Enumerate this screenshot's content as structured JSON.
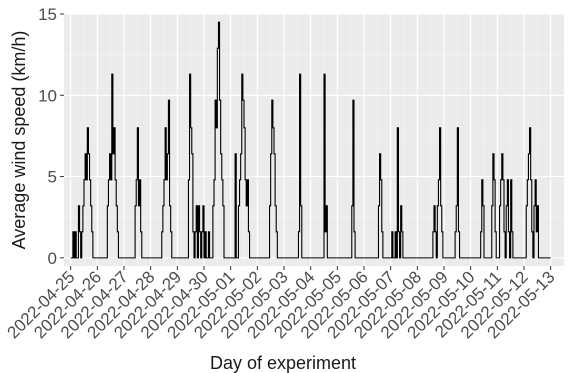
{
  "chart_data": {
    "type": "line",
    "title": "",
    "xlabel": "Day of experiment",
    "ylabel": "Average wind speed (km/h)",
    "ylim": [
      -0.5,
      15
    ],
    "yticks": [
      0,
      5,
      10,
      15
    ],
    "grid": true,
    "legend": "none",
    "x_type": "date",
    "xlim": [
      "2022-04-24T18:00",
      "2022-05-13T12:00"
    ],
    "xticks": [
      "2022-04-25",
      "2022-04-26",
      "2022-04-27",
      "2022-04-28",
      "2022-04-29",
      "2022-04-30",
      "2022-05-01",
      "2022-05-02",
      "2022-05-03",
      "2022-05-04",
      "2022-05-05",
      "2022-05-06",
      "2022-05-07",
      "2022-05-08",
      "2022-05-09",
      "2022-05-10",
      "2022-05-11",
      "2022-05-12",
      "2022-05-13"
    ],
    "series": [
      {
        "color": "#000000",
        "points": [
          [
            "2022-04-25T00:00",
            0
          ],
          [
            "2022-04-25T02:00",
            1.6
          ],
          [
            "2022-04-25T03:00",
            0
          ],
          [
            "2022-04-25T04:00",
            1.6
          ],
          [
            "2022-04-25T05:00",
            0
          ],
          [
            "2022-04-25T07:00",
            3.2
          ],
          [
            "2022-04-25T08:00",
            1.6
          ],
          [
            "2022-04-25T09:00",
            0
          ],
          [
            "2022-04-25T10:00",
            1.6
          ],
          [
            "2022-04-25T11:00",
            3.2
          ],
          [
            "2022-04-25T12:00",
            4.8
          ],
          [
            "2022-04-25T13:00",
            6.4
          ],
          [
            "2022-04-25T14:00",
            4.8
          ],
          [
            "2022-04-25T15:00",
            8.0
          ],
          [
            "2022-04-25T16:00",
            6.4
          ],
          [
            "2022-04-25T17:00",
            4.8
          ],
          [
            "2022-04-25T18:00",
            3.2
          ],
          [
            "2022-04-25T19:00",
            1.6
          ],
          [
            "2022-04-25T20:00",
            0
          ],
          [
            "2022-04-26T08:00",
            0
          ],
          [
            "2022-04-26T09:00",
            3.2
          ],
          [
            "2022-04-26T10:00",
            4.8
          ],
          [
            "2022-04-26T11:00",
            6.4
          ],
          [
            "2022-04-26T12:00",
            4.8
          ],
          [
            "2022-04-26T13:00",
            11.3
          ],
          [
            "2022-04-26T14:00",
            6.4
          ],
          [
            "2022-04-26T15:00",
            8.0
          ],
          [
            "2022-04-26T16:00",
            4.8
          ],
          [
            "2022-04-26T17:00",
            3.2
          ],
          [
            "2022-04-26T18:00",
            1.6
          ],
          [
            "2022-04-26T19:00",
            0
          ],
          [
            "2022-04-27T09:00",
            0
          ],
          [
            "2022-04-27T10:00",
            3.2
          ],
          [
            "2022-04-27T11:00",
            4.8
          ],
          [
            "2022-04-27T12:00",
            8.0
          ],
          [
            "2022-04-27T13:00",
            3.2
          ],
          [
            "2022-04-27T14:00",
            4.8
          ],
          [
            "2022-04-27T15:00",
            1.6
          ],
          [
            "2022-04-27T16:00",
            0
          ],
          [
            "2022-04-28T09:00",
            0
          ],
          [
            "2022-04-28T10:00",
            1.6
          ],
          [
            "2022-04-28T11:00",
            3.2
          ],
          [
            "2022-04-28T12:00",
            4.8
          ],
          [
            "2022-04-28T13:00",
            8.0
          ],
          [
            "2022-04-28T14:00",
            4.8
          ],
          [
            "2022-04-28T15:00",
            6.4
          ],
          [
            "2022-04-28T16:00",
            9.7
          ],
          [
            "2022-04-28T17:00",
            3.2
          ],
          [
            "2022-04-28T18:00",
            1.6
          ],
          [
            "2022-04-28T19:00",
            0
          ],
          [
            "2022-04-29T09:00",
            0
          ],
          [
            "2022-04-29T10:00",
            4.8
          ],
          [
            "2022-04-29T11:00",
            11.3
          ],
          [
            "2022-04-29T12:00",
            8.0
          ],
          [
            "2022-04-29T13:00",
            6.4
          ],
          [
            "2022-04-29T14:00",
            1.6
          ],
          [
            "2022-04-29T15:00",
            0
          ],
          [
            "2022-04-29T16:00",
            1.6
          ],
          [
            "2022-04-29T17:00",
            3.2
          ],
          [
            "2022-04-29T18:00",
            0
          ],
          [
            "2022-04-29T19:00",
            3.2
          ],
          [
            "2022-04-29T20:00",
            1.6
          ],
          [
            "2022-04-29T21:00",
            0
          ],
          [
            "2022-04-29T22:00",
            1.6
          ],
          [
            "2022-04-29T23:00",
            3.2
          ],
          [
            "2022-04-30T00:00",
            0
          ],
          [
            "2022-04-30T01:00",
            1.6
          ],
          [
            "2022-04-30T02:00",
            0
          ],
          [
            "2022-04-30T04:00",
            1.6
          ],
          [
            "2022-04-30T05:00",
            0
          ],
          [
            "2022-04-30T08:00",
            3.2
          ],
          [
            "2022-04-30T09:00",
            4.8
          ],
          [
            "2022-04-30T10:00",
            9.7
          ],
          [
            "2022-04-30T11:00",
            8.0
          ],
          [
            "2022-04-30T12:00",
            12.9
          ],
          [
            "2022-04-30T13:00",
            14.5
          ],
          [
            "2022-04-30T14:00",
            9.7
          ],
          [
            "2022-04-30T15:00",
            6.4
          ],
          [
            "2022-04-30T16:00",
            4.8
          ],
          [
            "2022-04-30T17:00",
            3.2
          ],
          [
            "2022-04-30T18:00",
            0
          ],
          [
            "2022-05-01T04:00",
            6.4
          ],
          [
            "2022-05-01T05:00",
            0
          ],
          [
            "2022-05-01T07:00",
            3.2
          ],
          [
            "2022-05-01T08:00",
            4.8
          ],
          [
            "2022-05-01T09:00",
            6.4
          ],
          [
            "2022-05-01T10:00",
            11.3
          ],
          [
            "2022-05-01T11:00",
            9.7
          ],
          [
            "2022-05-01T12:00",
            8.0
          ],
          [
            "2022-05-01T13:00",
            4.8
          ],
          [
            "2022-05-01T14:00",
            3.2
          ],
          [
            "2022-05-01T15:00",
            4.8
          ],
          [
            "2022-05-01T16:00",
            1.6
          ],
          [
            "2022-05-01T17:00",
            0
          ],
          [
            "2022-05-02T10:00",
            0
          ],
          [
            "2022-05-02T11:00",
            3.2
          ],
          [
            "2022-05-02T12:00",
            6.4
          ],
          [
            "2022-05-02T13:00",
            9.7
          ],
          [
            "2022-05-02T14:00",
            8.0
          ],
          [
            "2022-05-02T15:00",
            6.4
          ],
          [
            "2022-05-02T16:00",
            3.2
          ],
          [
            "2022-05-02T17:00",
            1.6
          ],
          [
            "2022-05-02T18:00",
            0
          ],
          [
            "2022-05-03T12:00",
            0
          ],
          [
            "2022-05-03T13:00",
            1.6
          ],
          [
            "2022-05-03T14:00",
            11.3
          ],
          [
            "2022-05-03T15:00",
            3.2
          ],
          [
            "2022-05-03T16:00",
            0
          ],
          [
            "2022-05-04T11:00",
            0
          ],
          [
            "2022-05-04T12:00",
            11.3
          ],
          [
            "2022-05-04T13:00",
            1.6
          ],
          [
            "2022-05-04T14:00",
            3.2
          ],
          [
            "2022-05-04T15:00",
            0
          ],
          [
            "2022-05-05T12:00",
            0
          ],
          [
            "2022-05-05T13:00",
            3.2
          ],
          [
            "2022-05-05T14:00",
            9.7
          ],
          [
            "2022-05-05T15:00",
            1.6
          ],
          [
            "2022-05-05T16:00",
            0
          ],
          [
            "2022-05-06T12:00",
            0
          ],
          [
            "2022-05-06T13:00",
            3.2
          ],
          [
            "2022-05-06T14:00",
            6.4
          ],
          [
            "2022-05-06T15:00",
            4.8
          ],
          [
            "2022-05-06T16:00",
            1.6
          ],
          [
            "2022-05-06T17:00",
            0
          ],
          [
            "2022-05-07T00:00",
            0
          ],
          [
            "2022-05-07T01:00",
            1.6
          ],
          [
            "2022-05-07T02:00",
            0
          ],
          [
            "2022-05-07T04:00",
            1.6
          ],
          [
            "2022-05-07T05:00",
            0
          ],
          [
            "2022-05-07T06:00",
            8.0
          ],
          [
            "2022-05-07T07:00",
            1.6
          ],
          [
            "2022-05-07T08:00",
            0
          ],
          [
            "2022-05-07T09:00",
            3.2
          ],
          [
            "2022-05-07T10:00",
            1.6
          ],
          [
            "2022-05-07T11:00",
            0
          ],
          [
            "2022-05-08T13:00",
            0
          ],
          [
            "2022-05-08T14:00",
            1.6
          ],
          [
            "2022-05-08T15:00",
            3.2
          ],
          [
            "2022-05-08T16:00",
            1.6
          ],
          [
            "2022-05-08T17:00",
            0
          ],
          [
            "2022-05-08T18:00",
            3.2
          ],
          [
            "2022-05-08T19:00",
            4.8
          ],
          [
            "2022-05-08T20:00",
            8.0
          ],
          [
            "2022-05-08T21:00",
            3.2
          ],
          [
            "2022-05-08T22:00",
            1.6
          ],
          [
            "2022-05-08T23:00",
            0
          ],
          [
            "2022-05-09T09:00",
            0
          ],
          [
            "2022-05-09T10:00",
            1.6
          ],
          [
            "2022-05-09T11:00",
            3.2
          ],
          [
            "2022-05-09T12:00",
            8.0
          ],
          [
            "2022-05-09T13:00",
            1.6
          ],
          [
            "2022-05-09T14:00",
            0
          ],
          [
            "2022-05-10T08:00",
            0
          ],
          [
            "2022-05-10T09:00",
            1.6
          ],
          [
            "2022-05-10T10:00",
            4.8
          ],
          [
            "2022-05-10T11:00",
            3.2
          ],
          [
            "2022-05-10T12:00",
            0
          ],
          [
            "2022-05-10T18:00",
            0
          ],
          [
            "2022-05-10T19:00",
            3.2
          ],
          [
            "2022-05-10T20:00",
            6.4
          ],
          [
            "2022-05-10T21:00",
            4.8
          ],
          [
            "2022-05-10T22:00",
            1.6
          ],
          [
            "2022-05-10T23:00",
            0
          ],
          [
            "2022-05-11T01:00",
            0
          ],
          [
            "2022-05-11T02:00",
            3.2
          ],
          [
            "2022-05-11T03:00",
            4.8
          ],
          [
            "2022-05-11T04:00",
            6.4
          ],
          [
            "2022-05-11T05:00",
            4.8
          ],
          [
            "2022-05-11T06:00",
            1.6
          ],
          [
            "2022-05-11T07:00",
            0
          ],
          [
            "2022-05-11T08:00",
            3.2
          ],
          [
            "2022-05-11T09:00",
            4.8
          ],
          [
            "2022-05-11T10:00",
            1.6
          ],
          [
            "2022-05-11T11:00",
            0
          ],
          [
            "2022-05-11T12:00",
            4.8
          ],
          [
            "2022-05-11T13:00",
            1.6
          ],
          [
            "2022-05-11T14:00",
            0
          ],
          [
            "2022-05-12T01:00",
            0
          ],
          [
            "2022-05-12T02:00",
            3.2
          ],
          [
            "2022-05-12T03:00",
            4.8
          ],
          [
            "2022-05-12T04:00",
            6.4
          ],
          [
            "2022-05-12T05:00",
            8.0
          ],
          [
            "2022-05-12T06:00",
            4.8
          ],
          [
            "2022-05-12T07:00",
            1.6
          ],
          [
            "2022-05-12T08:00",
            0
          ],
          [
            "2022-05-12T09:00",
            3.2
          ],
          [
            "2022-05-12T10:00",
            4.8
          ],
          [
            "2022-05-12T11:00",
            1.6
          ],
          [
            "2022-05-12T12:00",
            3.2
          ],
          [
            "2022-05-12T13:00",
            0
          ],
          [
            "2022-05-13T00:00",
            0
          ]
        ]
      }
    ]
  }
}
